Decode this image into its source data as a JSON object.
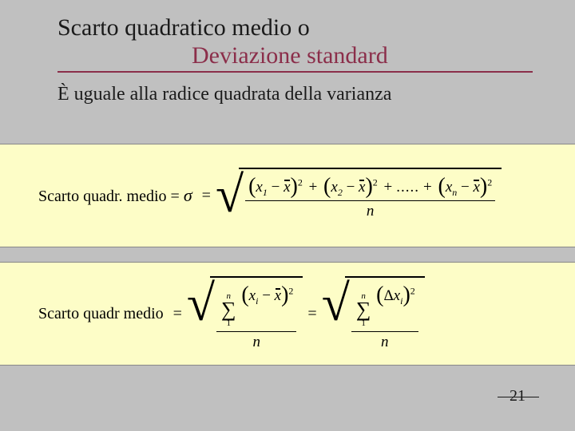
{
  "title": {
    "line1": "Scarto quadratico medio o",
    "line2": "Deviazione standard",
    "line1_color": "#1a1a1a",
    "line2_color": "#8b2e4a",
    "underline_color": "#8b2e4a"
  },
  "subtitle": "È uguale alla radice quadrata della varianza",
  "formula1": {
    "label": "Scarto quadr. medio",
    "sigma": "σ",
    "terms": {
      "x": "x",
      "sub1": "1",
      "sub2": "2",
      "subn": "n",
      "exp": "2",
      "dots": ".....",
      "den": "n"
    },
    "box_bg": "#fdfdc7"
  },
  "formula2": {
    "label": "Scarto quadr medio",
    "sum_upper": "n",
    "sum_lower": "1",
    "x": "x",
    "sub_i": "i",
    "delta": "Δ",
    "exp": "2",
    "den": "n",
    "box_bg": "#fdfdc7"
  },
  "page_number": "21",
  "background": "#c0c0c0"
}
